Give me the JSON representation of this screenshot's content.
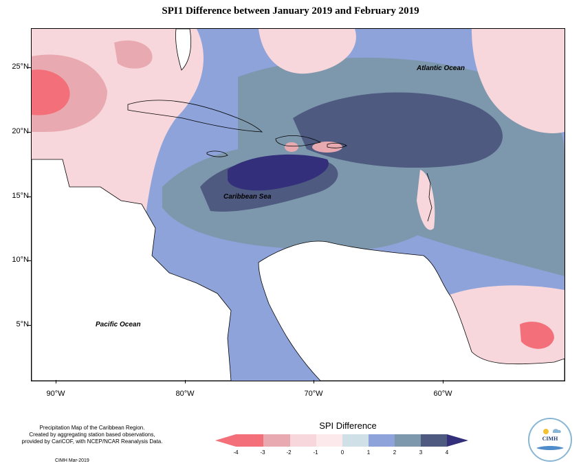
{
  "title": "SPI1 Difference between January 2019 and February 2019",
  "map": {
    "lat_labels": [
      "25°N",
      "20°N",
      "15°N",
      "10°N",
      "5°N"
    ],
    "lon_labels": [
      "90°W",
      "80°W",
      "70°W",
      "60°W"
    ],
    "ocean_labels": {
      "atlantic": "Atlantic Ocean",
      "caribbean": "Caribbean Sea",
      "pacific": "Pacific Ocean"
    }
  },
  "legend": {
    "title": "SPI Difference",
    "ticks": [
      "-4",
      "-3",
      "-2",
      "-1",
      "0",
      "1",
      "2",
      "3",
      "4"
    ],
    "colors": [
      "#f3707a",
      "#e8aab0",
      "#f8d7dc",
      "#fbe9ec",
      "#cfe1e6",
      "#8ea3da",
      "#7d98ad",
      "#4e5a80",
      "#332f7a"
    ]
  },
  "credits": {
    "lines": [
      "Precipitation Map of the Caribbean Region.",
      "Created by aggregating station based observations,",
      "provided by CariCOF, with NCEP/NCAR Reanalysis Data."
    ],
    "date": "CIMH Mar-2019"
  },
  "logo": {
    "text": "CIMH"
  }
}
